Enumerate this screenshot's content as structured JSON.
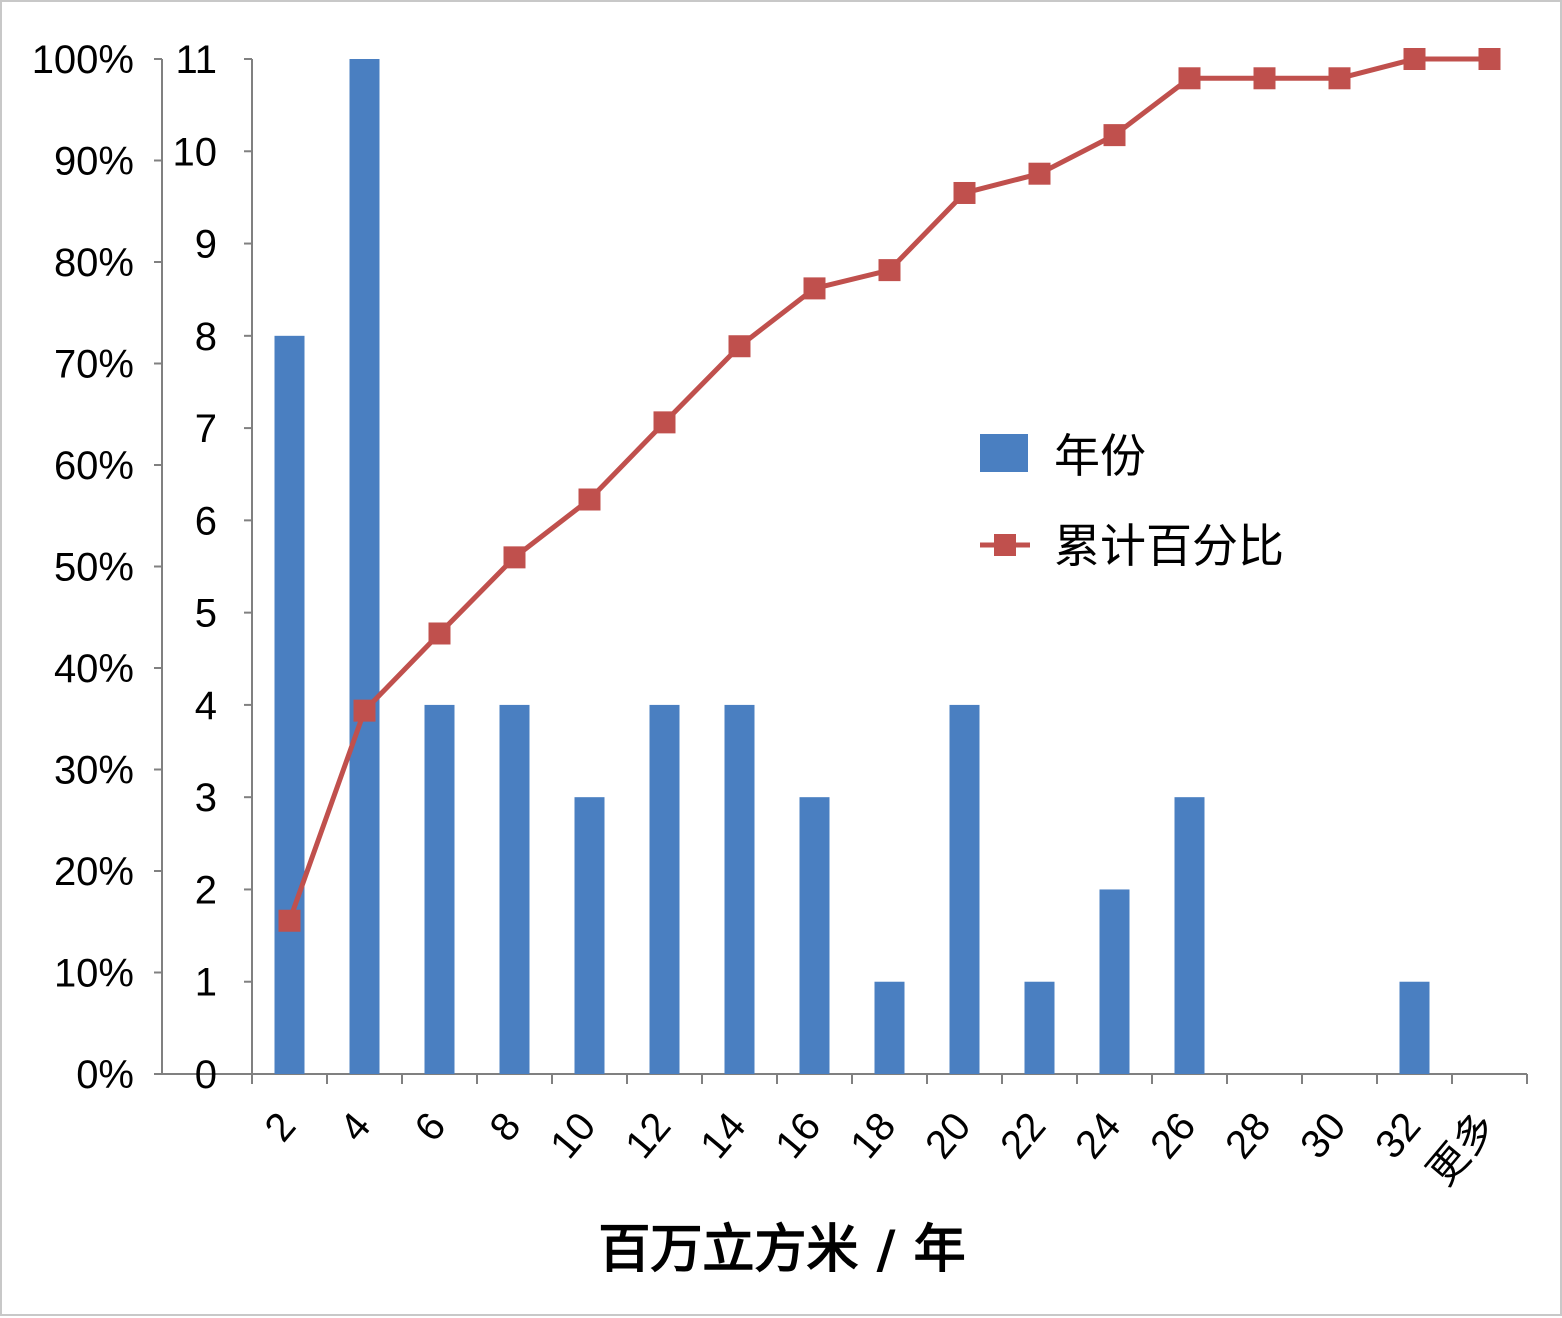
{
  "chart_data": {
    "type": "bar",
    "categories": [
      "2",
      "4",
      "6",
      "8",
      "10",
      "12",
      "14",
      "16",
      "18",
      "20",
      "22",
      "24",
      "26",
      "28",
      "30",
      "32",
      "更多"
    ],
    "series": [
      {
        "name": "年份",
        "type": "bar",
        "axis": "left",
        "color": "#4a7fc1",
        "values": [
          8,
          11,
          4,
          4,
          3,
          4,
          4,
          3,
          1,
          4,
          1,
          2,
          3,
          0,
          0,
          1,
          0
        ]
      },
      {
        "name": "累计百分比",
        "type": "line",
        "axis": "right",
        "color": "#c0504d",
        "values": [
          0.151,
          0.358,
          0.434,
          0.509,
          0.566,
          0.642,
          0.717,
          0.774,
          0.792,
          0.868,
          0.887,
          0.925,
          0.981,
          0.981,
          0.981,
          1.0,
          1.0
        ]
      }
    ],
    "y_left": {
      "ticks": [
        "0",
        "1",
        "2",
        "3",
        "4",
        "5",
        "6",
        "7",
        "8",
        "9",
        "10",
        "11"
      ],
      "ylim": [
        0,
        11
      ]
    },
    "y_right": {
      "ticks": [
        "0%",
        "10%",
        "20%",
        "30%",
        "40%",
        "50%",
        "60%",
        "70%",
        "80%",
        "90%",
        "100%"
      ],
      "ylim": [
        0,
        1
      ]
    },
    "xlabel": "百万立方米 / 年",
    "legend": {
      "position": "right-center",
      "entries": [
        "年份",
        "累计百分比"
      ]
    },
    "grid": false
  }
}
